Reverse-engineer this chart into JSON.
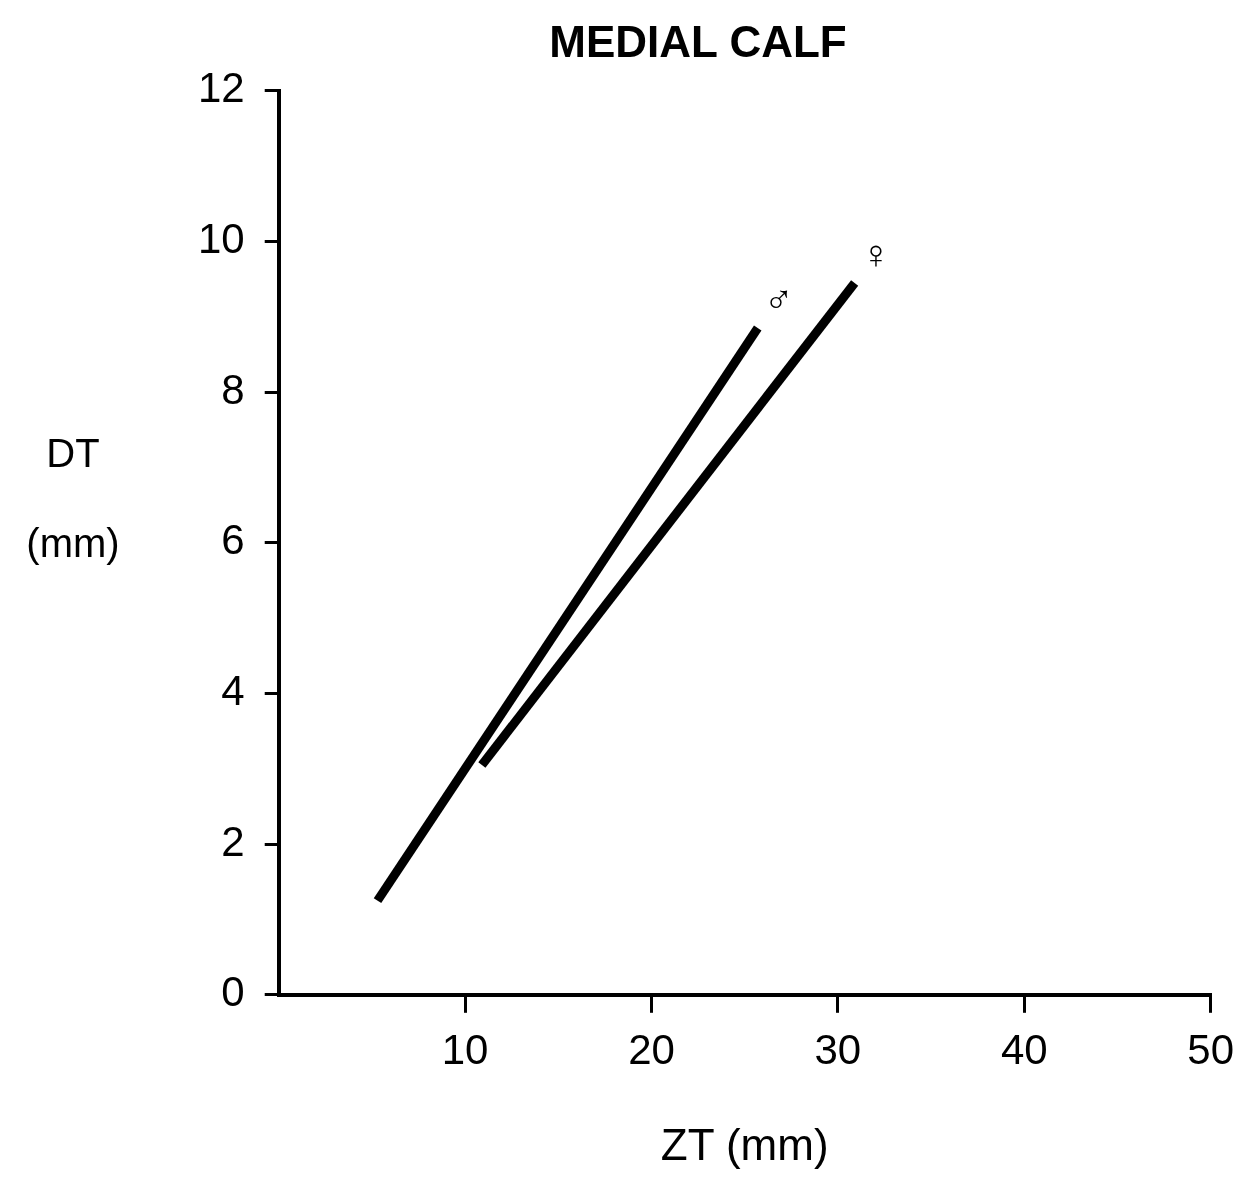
{
  "chart_data": {
    "type": "line",
    "title": "MEDIAL CALF",
    "xlabel": "ZT (mm)",
    "ylabel": "DT (mm)",
    "xlim": [
      0,
      50
    ],
    "xticks": [
      10,
      20,
      30,
      40,
      50
    ],
    "ylim": [
      0,
      12
    ],
    "yticks": [
      0,
      2,
      4,
      6,
      8,
      10,
      12
    ],
    "grid": false,
    "legend": false,
    "marker": "none",
    "line_style": "solid",
    "series": [
      {
        "name": "♂",
        "color": "#000000",
        "x": [
          5.3,
          25.7
        ],
        "values": [
          1.25,
          8.85
        ]
      },
      {
        "name": "♀",
        "color": "#000000",
        "x": [
          10.9,
          30.9
        ],
        "values": [
          3.05,
          9.45
        ]
      }
    ]
  }
}
